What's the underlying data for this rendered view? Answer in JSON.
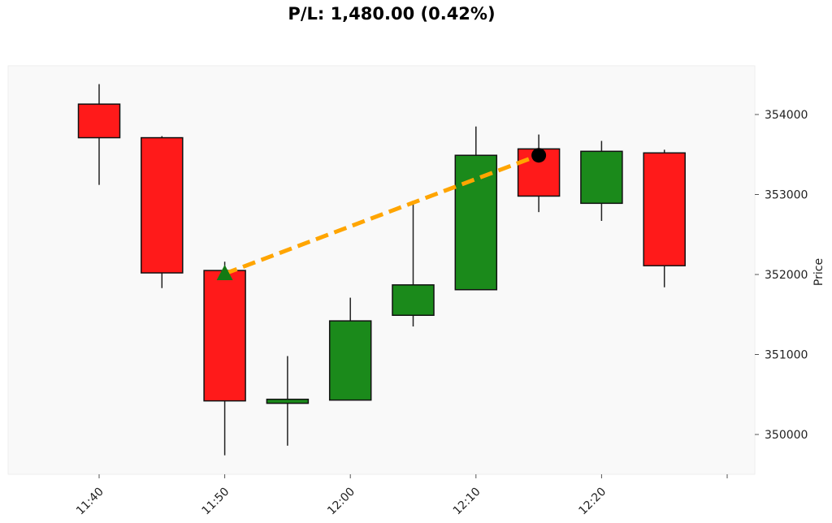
{
  "title": "P/L: 1,480.00 (0.42%)",
  "colors": {
    "up": "#1b8a1b",
    "down": "#ff1a1a",
    "plot_bg": "#f9f9f9",
    "trade_line": "#ffa500",
    "entry_marker": "#137a13",
    "exit_marker": "#000000"
  },
  "chart_data": {
    "type": "candlestick",
    "title": "P/L: 1,480.00 (0.42%)",
    "xlabel": "",
    "ylabel": "Price",
    "ylim": [
      349530,
      354600
    ],
    "yticks": [
      350000,
      351000,
      352000,
      353000,
      354000
    ],
    "xtick_labels": [
      "11:40",
      "11:50",
      "12:00",
      "12:10",
      "12:20",
      ""
    ],
    "grid": false,
    "categories": [
      "11:40",
      "11:45",
      "11:50",
      "11:55",
      "12:00",
      "12:05",
      "12:10",
      "12:15",
      "12:20",
      "12:25"
    ],
    "series": [
      {
        "name": "open",
        "values": [
          354130,
          353710,
          352050,
          350390,
          350430,
          351490,
          351810,
          353570,
          352890,
          353520
        ]
      },
      {
        "name": "high",
        "values": [
          354380,
          353730,
          352160,
          350980,
          351710,
          352890,
          353850,
          353750,
          353670,
          353560
        ]
      },
      {
        "name": "low",
        "values": [
          353120,
          351830,
          349740,
          349860,
          350430,
          351350,
          351810,
          352780,
          352670,
          351840
        ]
      },
      {
        "name": "close",
        "values": [
          353710,
          352020,
          350420,
          350440,
          351420,
          351870,
          353490,
          352980,
          353540,
          352110
        ]
      }
    ],
    "trade": {
      "entry": {
        "time": "11:50",
        "price": 352010,
        "marker": "triangle-up"
      },
      "exit": {
        "time": "12:15",
        "price": 353490,
        "marker": "circle"
      },
      "pnl": 1480.0,
      "pnl_pct": 0.42
    }
  }
}
